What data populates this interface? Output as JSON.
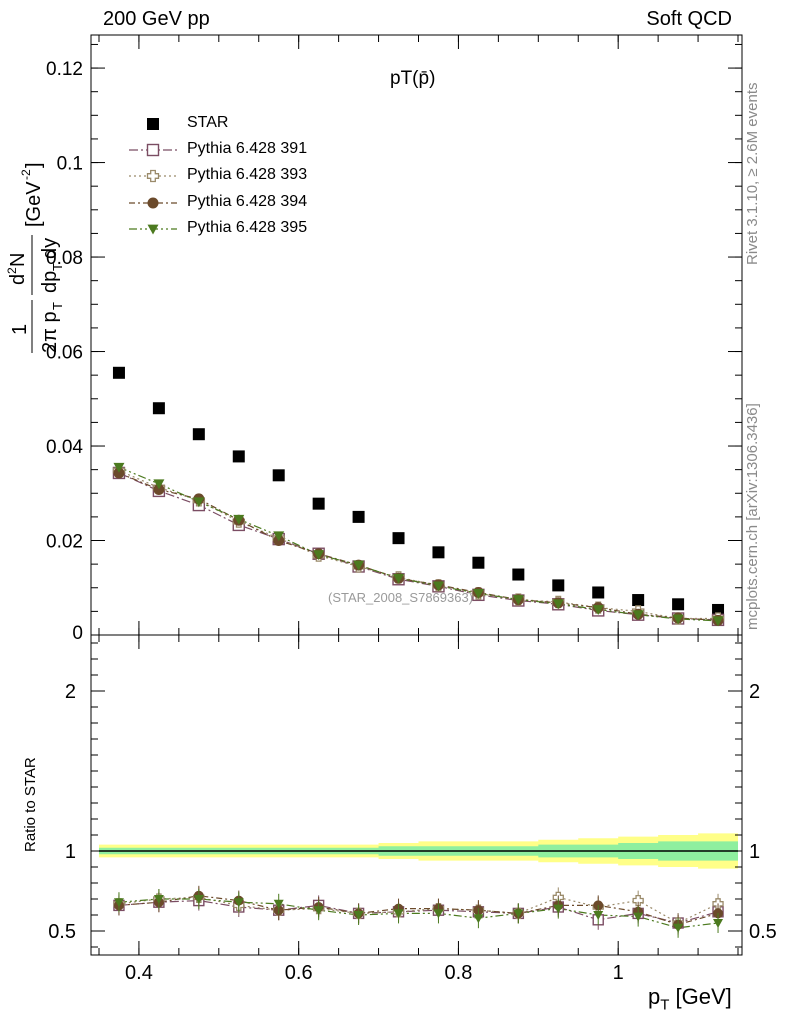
{
  "header": {
    "left": "200 GeV pp",
    "right": "Soft QCD"
  },
  "side_text": {
    "rivet": "Rivet 3.1.10, ≥ 2.6M events",
    "mcplots": "mcplots.cern.ch [arXiv:1306.3436]"
  },
  "watermark": "(STAR_2008_S7869363)",
  "legend_labels": [
    "STAR",
    "Pythia 6.428 391",
    "Pythia 6.428 393",
    "Pythia 6.428 394",
    "Pythia 6.428 395"
  ],
  "chart_data": [
    {
      "type": "scatter",
      "title": "pT(p̄)",
      "xlabel": "p_T [GeV]",
      "ylabel": "1/(2π p_T) d²N/(dp_T dy) [GeV⁻²]",
      "xlim": [
        0.34,
        1.155
      ],
      "ylim": [
        0,
        0.127
      ],
      "y_ticks": [
        0,
        0.02,
        0.04,
        0.06,
        0.08,
        0.1,
        0.12
      ],
      "y_tick_labels": [
        "0",
        "0.02",
        "0.04",
        "0.06",
        "0.08",
        "0.1",
        "0.12"
      ],
      "x": [
        0.375,
        0.425,
        0.475,
        0.525,
        0.575,
        0.625,
        0.675,
        0.725,
        0.775,
        0.825,
        0.875,
        0.925,
        0.975,
        1.025,
        1.075,
        1.125
      ],
      "series": [
        {
          "name": "STAR",
          "color": "#000000",
          "marker": "filled-square",
          "values": [
            0.0555,
            0.048,
            0.0425,
            0.0378,
            0.0338,
            0.0278,
            0.025,
            0.0205,
            0.0175,
            0.0153,
            0.0128,
            0.0105,
            0.009,
            0.0074,
            0.0065,
            0.0053
          ]
        },
        {
          "name": "Pythia 6.428 391",
          "color": "#7b4d63",
          "marker": "open-square",
          "dash": "9,3,2,3",
          "values": [
            0.0343,
            0.0305,
            0.0275,
            0.0233,
            0.0203,
            0.0172,
            0.0145,
            0.0118,
            0.0103,
            0.0085,
            0.0073,
            0.0065,
            0.0052,
            0.0043,
            0.0035,
            0.0032
          ]
        },
        {
          "name": "Pythia 6.428 393",
          "color": "#9a8a6a",
          "marker": "open-cross",
          "dash": "2,3",
          "values": [
            0.0348,
            0.0312,
            0.0285,
            0.024,
            0.0205,
            0.0168,
            0.0145,
            0.0122,
            0.0105,
            0.0088,
            0.0075,
            0.007,
            0.0058,
            0.005,
            0.0035,
            0.0035
          ]
        },
        {
          "name": "Pythia 6.428 394",
          "color": "#6b4a2b",
          "marker": "filled-circle",
          "dash": "6,3,2,3",
          "values": [
            0.0343,
            0.0308,
            0.0288,
            0.0243,
            0.02,
            0.0172,
            0.0148,
            0.012,
            0.0106,
            0.009,
            0.0075,
            0.0068,
            0.0058,
            0.0044,
            0.0036,
            0.0031
          ]
        },
        {
          "name": "Pythia 6.428 395",
          "color": "#4c7a1f",
          "marker": "filled-triangle-down",
          "dash": "8,3,2,3,2,3",
          "values": [
            0.0355,
            0.032,
            0.0282,
            0.0245,
            0.021,
            0.017,
            0.0148,
            0.012,
            0.0104,
            0.0088,
            0.0075,
            0.0066,
            0.0054,
            0.0043,
            0.0034,
            0.003
          ]
        }
      ]
    },
    {
      "type": "scatter",
      "ylabel": "Ratio to STAR",
      "xlabel": "p_T [GeV]",
      "xlim": [
        0.34,
        1.155
      ],
      "ylim": [
        0.35,
        2.35
      ],
      "x_ticks": [
        0.4,
        0.6,
        0.8,
        1.0
      ],
      "x_tick_labels": [
        "0.4",
        "0.6",
        "0.8",
        "1"
      ],
      "y_ticks": [
        0.5,
        1,
        2
      ],
      "y_tick_labels": [
        "0.5",
        "1",
        "2"
      ],
      "x": [
        0.375,
        0.425,
        0.475,
        0.525,
        0.575,
        0.625,
        0.675,
        0.725,
        0.775,
        0.825,
        0.875,
        0.925,
        0.975,
        1.025,
        1.075,
        1.125
      ],
      "uncertainty_bands": {
        "outer": {
          "color": "#ffff88",
          "upper": [
            1.04,
            1.04,
            1.04,
            1.04,
            1.04,
            1.04,
            1.04,
            1.05,
            1.06,
            1.06,
            1.06,
            1.07,
            1.08,
            1.09,
            1.1,
            1.11
          ],
          "lower": [
            0.96,
            0.96,
            0.96,
            0.96,
            0.96,
            0.96,
            0.96,
            0.95,
            0.94,
            0.94,
            0.94,
            0.93,
            0.92,
            0.91,
            0.9,
            0.89
          ]
        },
        "inner": {
          "color": "#8fef9f",
          "upper": [
            1.02,
            1.02,
            1.02,
            1.02,
            1.02,
            1.02,
            1.02,
            1.03,
            1.03,
            1.03,
            1.03,
            1.04,
            1.04,
            1.05,
            1.06,
            1.06
          ],
          "lower": [
            0.98,
            0.98,
            0.98,
            0.98,
            0.98,
            0.98,
            0.98,
            0.97,
            0.97,
            0.97,
            0.97,
            0.96,
            0.96,
            0.95,
            0.94,
            0.94
          ]
        }
      },
      "series": [
        {
          "name": "Pythia 6.428 391",
          "color": "#7b4d63",
          "marker": "open-square",
          "dash": "9,3,2,3",
          "values": [
            0.66,
            0.68,
            0.69,
            0.65,
            0.63,
            0.66,
            0.61,
            0.62,
            0.63,
            0.62,
            0.61,
            0.65,
            0.57,
            0.61,
            0.55,
            0.62
          ]
        },
        {
          "name": "Pythia 6.428 393",
          "color": "#9a8a6a",
          "marker": "open-cross",
          "dash": "2,3",
          "values": [
            0.67,
            0.7,
            0.71,
            0.66,
            0.63,
            0.64,
            0.61,
            0.62,
            0.64,
            0.63,
            0.61,
            0.71,
            0.65,
            0.69,
            0.55,
            0.67
          ]
        },
        {
          "name": "Pythia 6.428 394",
          "color": "#6b4a2b",
          "marker": "filled-circle",
          "dash": "6,3,2,3",
          "values": [
            0.66,
            0.68,
            0.72,
            0.69,
            0.63,
            0.65,
            0.61,
            0.64,
            0.64,
            0.63,
            0.61,
            0.66,
            0.66,
            0.62,
            0.54,
            0.61
          ]
        },
        {
          "name": "Pythia 6.428 395",
          "color": "#4c7a1f",
          "marker": "filled-triangle-down",
          "dash": "8,3,2,3,2,3",
          "values": [
            0.68,
            0.7,
            0.7,
            0.68,
            0.67,
            0.63,
            0.6,
            0.61,
            0.61,
            0.58,
            0.61,
            0.64,
            0.6,
            0.59,
            0.52,
            0.55
          ]
        }
      ]
    }
  ]
}
